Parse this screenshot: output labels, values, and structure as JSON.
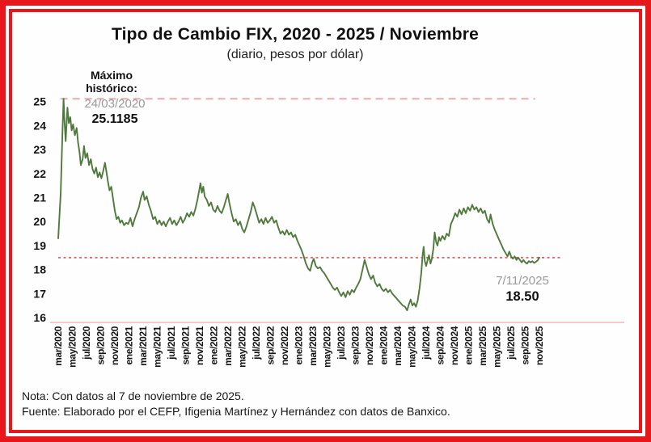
{
  "frame": {
    "border_color": "#e8171b"
  },
  "header": {
    "title": "Tipo de Cambio FIX, 2020 - 2025 / Noviembre",
    "subtitle": "(diario, pesos por dólar)"
  },
  "annotations": {
    "max": {
      "label_line1": "Máximo",
      "label_line2": "histórico:",
      "date": "24/03/2020",
      "value": "25.1185"
    },
    "current": {
      "date": "7/11/2025",
      "value": "18.50"
    }
  },
  "footer": {
    "note": "Nota: Con datos al 7 de noviembre de 2025.",
    "source": "Fuente: Elaborado por el CEFP, Ifigenia Martínez y Hernández con datos de Banxico."
  },
  "chart_data": {
    "type": "line",
    "title": "Tipo de Cambio FIX, 2020 - 2025 / Noviembre",
    "subtitle": "(diario, pesos por dólar)",
    "xlabel": "",
    "ylabel": "pesos por dólar",
    "ylim": [
      16,
      25.5
    ],
    "grid": false,
    "legend": "none",
    "y_ticks": [
      25,
      24,
      23,
      22,
      21,
      20,
      19,
      18,
      17,
      16
    ],
    "x_tick_labels": [
      "mar/2020",
      "may/2020",
      "jul/2020",
      "sep/2020",
      "nov/2020",
      "ene/2021",
      "mar/2021",
      "may/2021",
      "jul/2021",
      "sep/2021",
      "nov/2021",
      "ene/2022",
      "mar/2022",
      "may/2022",
      "jul/2022",
      "sep/2022",
      "nov/2022",
      "ene/2023",
      "mar/2023",
      "may/2023",
      "jul/2023",
      "sep/2023",
      "nov/2023",
      "ene/2024",
      "mar/2024",
      "may/2024",
      "jul/2024",
      "sep/2024",
      "nov/2024",
      "ene/2025",
      "mar/2025",
      "may/2025",
      "jul/2025",
      "sep/2025",
      "nov/2025"
    ],
    "x_unit": "months since mar/2020",
    "x_range_months": [
      0,
      68
    ],
    "max_point": {
      "date": "24/03/2020",
      "value": 25.1185
    },
    "last_point": {
      "date": "7/11/2025",
      "value": 18.5
    },
    "reference_lines": [
      {
        "name": "reference-line-maximo-historico",
        "value": 25.1185,
        "style": "dashed",
        "dash": "9 6",
        "width": 2,
        "color": "#efa9ab",
        "from_month": 0.3,
        "to_month": 67.4,
        "label": "Máximo histórico: 24/03/2020  25.1185"
      },
      {
        "name": "reference-line-nivel-actual",
        "value": 18.5,
        "style": "dotted",
        "dash": "3 3.5",
        "width": 1.8,
        "color": "#d96b6d",
        "from_month": 0,
        "to_month": 71,
        "label": "7/11/2025  18.50"
      }
    ],
    "series": [
      {
        "name": "Tipo de cambio FIX diario (pesos por dólar)",
        "color": "#4f7a3c",
        "points": [
          [
            0,
            19.3
          ],
          [
            0.35,
            21.2
          ],
          [
            0.6,
            23.8
          ],
          [
            0.75,
            25.12
          ],
          [
            0.9,
            24.1
          ],
          [
            1.05,
            23.35
          ],
          [
            1.3,
            24.75
          ],
          [
            1.5,
            24.1
          ],
          [
            1.7,
            24.35
          ],
          [
            1.9,
            23.8
          ],
          [
            2.1,
            24.05
          ],
          [
            2.35,
            23.6
          ],
          [
            2.6,
            23.9
          ],
          [
            2.8,
            23.3
          ],
          [
            3.0,
            22.9
          ],
          [
            3.2,
            22.35
          ],
          [
            3.45,
            22.6
          ],
          [
            3.65,
            23.15
          ],
          [
            3.85,
            22.65
          ],
          [
            4.1,
            22.85
          ],
          [
            4.35,
            22.35
          ],
          [
            4.6,
            22.6
          ],
          [
            4.85,
            22.2
          ],
          [
            5.1,
            22.0
          ],
          [
            5.35,
            22.25
          ],
          [
            5.6,
            21.85
          ],
          [
            5.85,
            22.05
          ],
          [
            6.1,
            21.8
          ],
          [
            6.35,
            22.1
          ],
          [
            6.6,
            22.45
          ],
          [
            6.8,
            22.1
          ],
          [
            7.0,
            21.7
          ],
          [
            7.25,
            21.3
          ],
          [
            7.5,
            21.45
          ],
          [
            7.75,
            20.95
          ],
          [
            8.0,
            20.45
          ],
          [
            8.25,
            20.1
          ],
          [
            8.5,
            20.2
          ],
          [
            8.75,
            19.95
          ],
          [
            9.0,
            20.05
          ],
          [
            9.3,
            19.85
          ],
          [
            9.6,
            19.95
          ],
          [
            9.9,
            19.9
          ],
          [
            10.2,
            20.15
          ],
          [
            10.5,
            19.8
          ],
          [
            10.8,
            20.1
          ],
          [
            11.1,
            20.35
          ],
          [
            11.4,
            20.6
          ],
          [
            11.7,
            21.0
          ],
          [
            12.0,
            21.25
          ],
          [
            12.2,
            20.9
          ],
          [
            12.5,
            21.05
          ],
          [
            12.8,
            20.7
          ],
          [
            13.1,
            20.45
          ],
          [
            13.4,
            20.1
          ],
          [
            13.7,
            20.2
          ],
          [
            14.0,
            19.9
          ],
          [
            14.3,
            20.05
          ],
          [
            14.6,
            19.85
          ],
          [
            14.9,
            20.0
          ],
          [
            15.2,
            19.8
          ],
          [
            15.5,
            20.0
          ],
          [
            15.8,
            20.15
          ],
          [
            16.1,
            19.9
          ],
          [
            16.4,
            20.05
          ],
          [
            16.7,
            19.85
          ],
          [
            17.0,
            20.0
          ],
          [
            17.3,
            20.2
          ],
          [
            17.6,
            19.95
          ],
          [
            17.9,
            20.1
          ],
          [
            18.2,
            20.35
          ],
          [
            18.5,
            20.2
          ],
          [
            18.8,
            20.4
          ],
          [
            19.1,
            20.25
          ],
          [
            19.4,
            20.55
          ],
          [
            19.7,
            20.95
          ],
          [
            19.95,
            21.35
          ],
          [
            20.1,
            21.6
          ],
          [
            20.3,
            21.2
          ],
          [
            20.5,
            21.45
          ],
          [
            20.7,
            21.05
          ],
          [
            21.0,
            20.9
          ],
          [
            21.3,
            20.65
          ],
          [
            21.6,
            20.8
          ],
          [
            21.9,
            20.5
          ],
          [
            22.2,
            20.4
          ],
          [
            22.5,
            20.65
          ],
          [
            22.8,
            20.45
          ],
          [
            23.1,
            20.35
          ],
          [
            23.4,
            20.6
          ],
          [
            23.7,
            20.9
          ],
          [
            23.95,
            21.15
          ],
          [
            24.2,
            20.75
          ],
          [
            24.5,
            20.35
          ],
          [
            24.8,
            20.0
          ],
          [
            25.1,
            20.1
          ],
          [
            25.4,
            19.85
          ],
          [
            25.7,
            20.0
          ],
          [
            26.0,
            19.7
          ],
          [
            26.3,
            19.55
          ],
          [
            26.6,
            19.8
          ],
          [
            26.9,
            20.1
          ],
          [
            27.2,
            20.4
          ],
          [
            27.5,
            20.8
          ],
          [
            27.8,
            20.55
          ],
          [
            28.1,
            20.25
          ],
          [
            28.4,
            19.95
          ],
          [
            28.7,
            20.1
          ],
          [
            29.0,
            19.9
          ],
          [
            29.3,
            20.15
          ],
          [
            29.6,
            19.95
          ],
          [
            29.9,
            20.05
          ],
          [
            30.2,
            20.2
          ],
          [
            30.5,
            19.95
          ],
          [
            30.8,
            20.05
          ],
          [
            31.1,
            19.75
          ],
          [
            31.4,
            19.5
          ],
          [
            31.7,
            19.6
          ],
          [
            32.0,
            19.45
          ],
          [
            32.3,
            19.65
          ],
          [
            32.6,
            19.45
          ],
          [
            32.9,
            19.55
          ],
          [
            33.2,
            19.35
          ],
          [
            33.5,
            19.45
          ],
          [
            33.8,
            19.2
          ],
          [
            34.1,
            19.0
          ],
          [
            34.4,
            18.8
          ],
          [
            34.7,
            18.55
          ],
          [
            35.0,
            18.25
          ],
          [
            35.3,
            18.05
          ],
          [
            35.6,
            17.95
          ],
          [
            35.9,
            18.3
          ],
          [
            36.1,
            18.45
          ],
          [
            36.4,
            18.15
          ],
          [
            36.7,
            18.05
          ],
          [
            37.0,
            18.1
          ],
          [
            37.3,
            17.95
          ],
          [
            37.6,
            17.85
          ],
          [
            37.9,
            17.7
          ],
          [
            38.2,
            17.55
          ],
          [
            38.5,
            17.4
          ],
          [
            38.8,
            17.25
          ],
          [
            39.1,
            17.15
          ],
          [
            39.4,
            17.25
          ],
          [
            39.7,
            17.05
          ],
          [
            40.0,
            16.9
          ],
          [
            40.3,
            17.05
          ],
          [
            40.6,
            16.85
          ],
          [
            40.9,
            17.1
          ],
          [
            41.2,
            16.95
          ],
          [
            41.5,
            17.15
          ],
          [
            41.8,
            17.05
          ],
          [
            42.1,
            17.25
          ],
          [
            42.4,
            17.4
          ],
          [
            42.7,
            17.6
          ],
          [
            43.0,
            18.0
          ],
          [
            43.3,
            18.4
          ],
          [
            43.6,
            18.1
          ],
          [
            43.9,
            17.8
          ],
          [
            44.2,
            17.6
          ],
          [
            44.5,
            17.75
          ],
          [
            44.8,
            17.45
          ],
          [
            45.1,
            17.3
          ],
          [
            45.4,
            17.4
          ],
          [
            45.7,
            17.2
          ],
          [
            46.0,
            17.1
          ],
          [
            46.3,
            17.2
          ],
          [
            46.6,
            17.05
          ],
          [
            46.9,
            17.15
          ],
          [
            47.2,
            17.0
          ],
          [
            47.5,
            16.9
          ],
          [
            47.8,
            16.8
          ],
          [
            48.1,
            16.7
          ],
          [
            48.4,
            16.6
          ],
          [
            48.7,
            16.5
          ],
          [
            49.0,
            16.45
          ],
          [
            49.3,
            16.3
          ],
          [
            49.55,
            16.55
          ],
          [
            49.8,
            16.75
          ],
          [
            50.05,
            16.5
          ],
          [
            50.3,
            16.6
          ],
          [
            50.55,
            16.45
          ],
          [
            50.8,
            16.7
          ],
          [
            51.05,
            17.2
          ],
          [
            51.3,
            17.85
          ],
          [
            51.5,
            18.6
          ],
          [
            51.65,
            18.95
          ],
          [
            51.8,
            18.35
          ],
          [
            52.0,
            18.15
          ],
          [
            52.2,
            18.4
          ],
          [
            52.4,
            18.6
          ],
          [
            52.6,
            18.25
          ],
          [
            52.8,
            18.45
          ],
          [
            53.0,
            18.85
          ],
          [
            53.2,
            19.55
          ],
          [
            53.4,
            19.15
          ],
          [
            53.6,
            19.0
          ],
          [
            53.8,
            19.35
          ],
          [
            54.0,
            19.2
          ],
          [
            54.3,
            19.4
          ],
          [
            54.6,
            19.25
          ],
          [
            54.9,
            19.5
          ],
          [
            55.2,
            19.4
          ],
          [
            55.5,
            19.9
          ],
          [
            55.8,
            20.1
          ],
          [
            56.1,
            20.35
          ],
          [
            56.4,
            20.2
          ],
          [
            56.7,
            20.5
          ],
          [
            57.0,
            20.3
          ],
          [
            57.3,
            20.55
          ],
          [
            57.6,
            20.35
          ],
          [
            57.9,
            20.6
          ],
          [
            58.2,
            20.45
          ],
          [
            58.5,
            20.7
          ],
          [
            58.8,
            20.5
          ],
          [
            59.1,
            20.6
          ],
          [
            59.4,
            20.4
          ],
          [
            59.7,
            20.55
          ],
          [
            60.0,
            20.35
          ],
          [
            60.3,
            20.45
          ],
          [
            60.6,
            20.1
          ],
          [
            60.9,
            19.95
          ],
          [
            61.1,
            20.3
          ],
          [
            61.4,
            19.9
          ],
          [
            61.7,
            19.65
          ],
          [
            62.0,
            19.45
          ],
          [
            62.3,
            19.25
          ],
          [
            62.6,
            19.05
          ],
          [
            62.9,
            18.85
          ],
          [
            63.2,
            18.7
          ],
          [
            63.5,
            18.55
          ],
          [
            63.75,
            18.75
          ],
          [
            64.0,
            18.55
          ],
          [
            64.25,
            18.45
          ],
          [
            64.5,
            18.55
          ],
          [
            64.75,
            18.4
          ],
          [
            65.0,
            18.5
          ],
          [
            65.25,
            18.4
          ],
          [
            65.5,
            18.3
          ],
          [
            65.75,
            18.4
          ],
          [
            66.0,
            18.3
          ],
          [
            66.25,
            18.25
          ],
          [
            66.5,
            18.35
          ],
          [
            66.75,
            18.3
          ],
          [
            67.0,
            18.35
          ],
          [
            67.25,
            18.28
          ],
          [
            67.5,
            18.32
          ],
          [
            67.75,
            18.38
          ],
          [
            68.0,
            18.5
          ]
        ]
      }
    ]
  }
}
